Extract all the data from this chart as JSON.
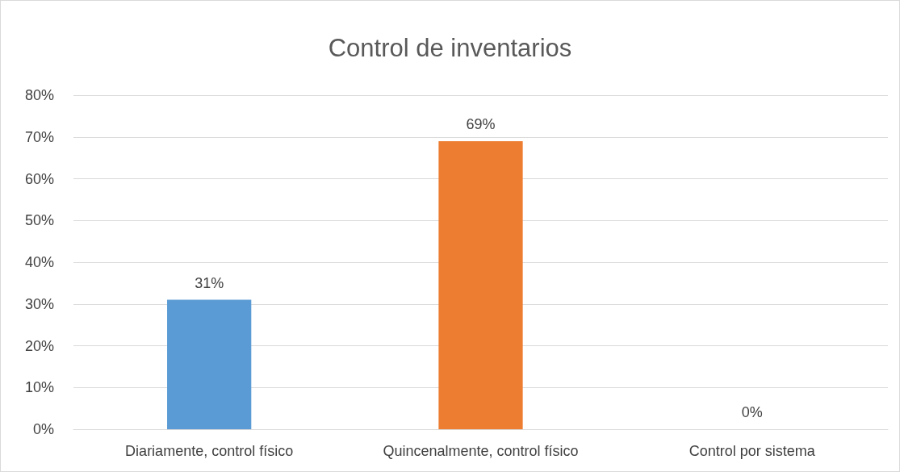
{
  "chart_data": {
    "type": "bar",
    "title": "Control de inventarios",
    "categories": [
      "Diariamente, control físico",
      "Quincenalmente, control físico",
      "Control por sistema"
    ],
    "values": [
      31,
      69,
      0
    ],
    "colors": [
      "#5b9bd5",
      "#ed7d31",
      "#a5a5a5"
    ],
    "value_labels": [
      "31%",
      "69%",
      "0%"
    ],
    "ylim": [
      0,
      80
    ],
    "yticks": [
      {
        "value": 0,
        "label": "0%"
      },
      {
        "value": 10,
        "label": "10%"
      },
      {
        "value": 20,
        "label": "20%"
      },
      {
        "value": 30,
        "label": "30%"
      },
      {
        "value": 40,
        "label": "40%"
      },
      {
        "value": 50,
        "label": "50%"
      },
      {
        "value": 60,
        "label": "60%"
      },
      {
        "value": 70,
        "label": "70%"
      },
      {
        "value": 80,
        "label": "80%"
      }
    ],
    "grid": "y"
  }
}
